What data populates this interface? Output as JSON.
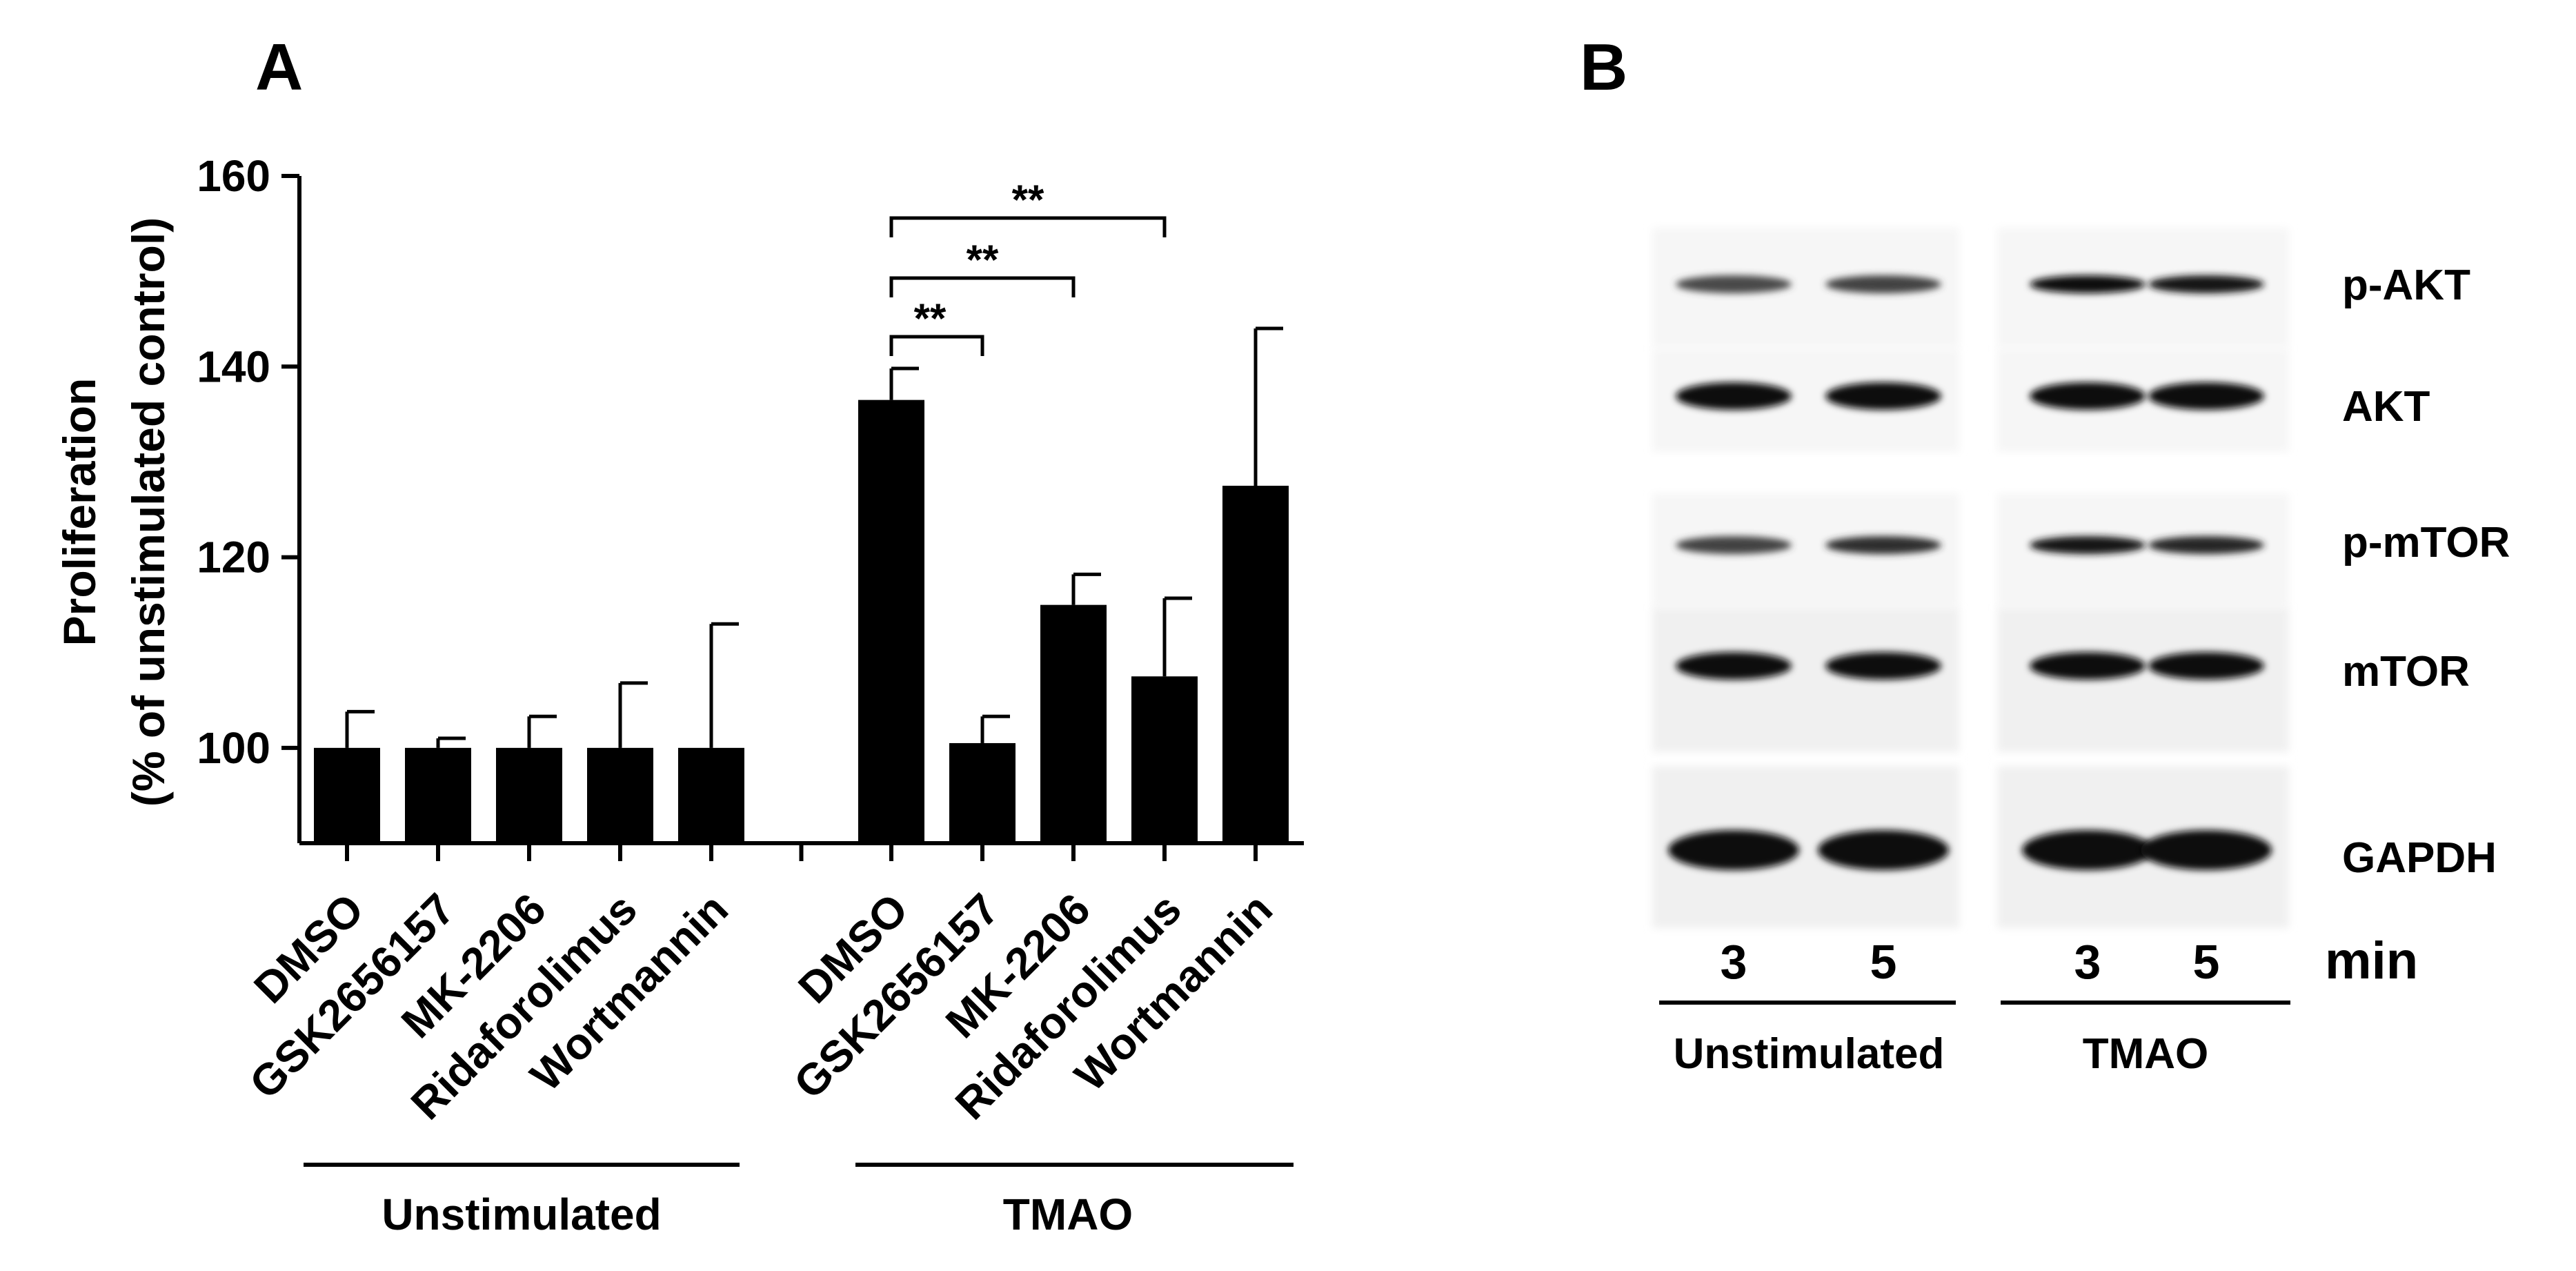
{
  "panel_a": {
    "letter": "A",
    "ylabel_line1": "Proliferation",
    "ylabel_line2": "(% of unstimulated control)",
    "group_labels": [
      "Unstimulated",
      "TMAO"
    ],
    "significance": [
      {
        "from": 0,
        "to": 1,
        "label": "**"
      },
      {
        "from": 0,
        "to": 2,
        "label": "**"
      },
      {
        "from": 0,
        "to": 3,
        "label": "**"
      }
    ]
  },
  "chart_data": {
    "type": "bar",
    "ylim": [
      90,
      160
    ],
    "yticks": [
      100,
      120,
      140,
      160
    ],
    "categories": [
      "DMSO",
      "GSK2656157",
      "MK-2206",
      "Ridaforolimus",
      "Wortmannin"
    ],
    "series": [
      {
        "name": "Unstimulated",
        "values": [
          100,
          100,
          100,
          100,
          100
        ],
        "errors": [
          3.8,
          1.0,
          3.3,
          6.8,
          13.0
        ]
      },
      {
        "name": "TMAO",
        "values": [
          136.5,
          100.5,
          115,
          107.5,
          127.5
        ],
        "errors": [
          3.3,
          2.8,
          3.2,
          8.2,
          16.5
        ]
      }
    ],
    "bar_color": "#000000",
    "grid": false
  },
  "panel_b": {
    "letter": "B",
    "proteins": [
      "p-AKT",
      "AKT",
      "p-mTOR",
      "mTOR",
      "GAPDH"
    ],
    "times": [
      "3",
      "5",
      "3",
      "5"
    ],
    "time_unit": "min",
    "conditions": [
      "Unstimulated",
      "TMAO"
    ],
    "band_intensity": {
      "p-AKT": [
        0.55,
        0.6,
        1.0,
        0.92
      ],
      "AKT": [
        1.0,
        1.0,
        1.0,
        1.0
      ],
      "p-mTOR": [
        0.6,
        0.75,
        0.9,
        0.8
      ],
      "mTOR": [
        1.0,
        1.0,
        1.0,
        1.0
      ],
      "GAPDH": [
        1.0,
        1.0,
        1.0,
        1.0
      ]
    }
  }
}
